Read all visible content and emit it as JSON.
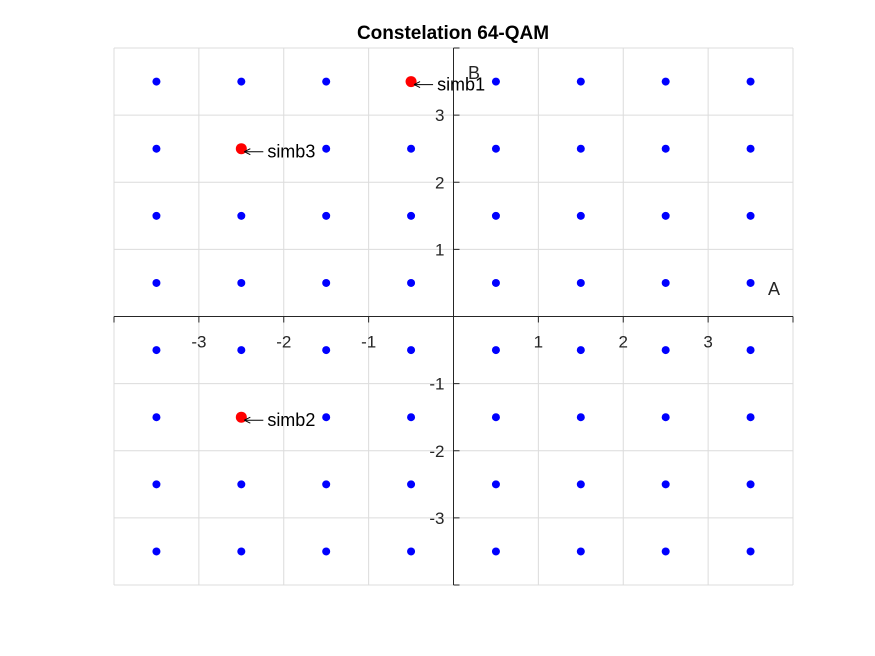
{
  "chart_data": {
    "type": "scatter",
    "title": "Constelation 64-QAM",
    "xlabel": "A",
    "ylabel": "B",
    "xlim": [
      -4,
      4
    ],
    "ylim": [
      -4,
      4
    ],
    "grid": true,
    "axis_location": "origin",
    "x_ticks": [
      -3,
      -2,
      -1,
      1,
      2,
      3
    ],
    "y_ticks": [
      -3,
      -2,
      -1,
      1,
      2,
      3
    ],
    "constellation": {
      "levels": [
        -3.5,
        -2.5,
        -1.5,
        -0.5,
        0.5,
        1.5,
        2.5,
        3.5
      ],
      "color": "#0000ff"
    },
    "highlighted": [
      {
        "label": "simb1",
        "x": -0.5,
        "y": 3.5,
        "color": "#ff0000"
      },
      {
        "label": "simb2",
        "x": -2.5,
        "y": -1.5,
        "color": "#ff0000"
      },
      {
        "label": "simb3",
        "x": -2.5,
        "y": 2.5,
        "color": "#ff0000"
      }
    ]
  }
}
